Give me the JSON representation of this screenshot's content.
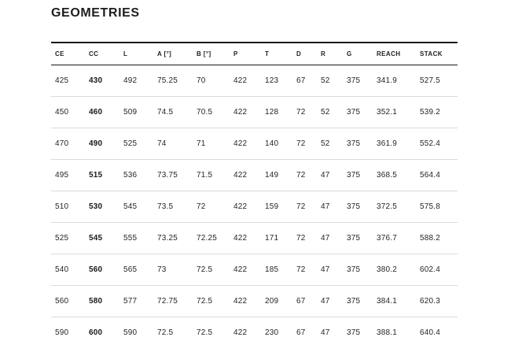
{
  "title": "GEOMETRIES",
  "colors": {
    "background": "#ffffff",
    "text": "#1e1e1e",
    "rule_dark": "#1a1a1a",
    "rule_light": "#dadada"
  },
  "table": {
    "columns": [
      "CE",
      "CC",
      "L",
      "A [°]",
      "B [°]",
      "P",
      "T",
      "D",
      "R",
      "G",
      "REACH",
      "STACK"
    ],
    "bold_column": "CC",
    "rows": [
      [
        "425",
        "430",
        "492",
        "75.25",
        "70",
        "422",
        "123",
        "67",
        "52",
        "375",
        "341.9",
        "527.5"
      ],
      [
        "450",
        "460",
        "509",
        "74.5",
        "70.5",
        "422",
        "128",
        "72",
        "52",
        "375",
        "352.1",
        "539.2"
      ],
      [
        "470",
        "490",
        "525",
        "74",
        "71",
        "422",
        "140",
        "72",
        "52",
        "375",
        "361.9",
        "552.4"
      ],
      [
        "495",
        "515",
        "536",
        "73.75",
        "71.5",
        "422",
        "149",
        "72",
        "47",
        "375",
        "368.5",
        "564.4"
      ],
      [
        "510",
        "530",
        "545",
        "73.5",
        "72",
        "422",
        "159",
        "72",
        "47",
        "375",
        "372.5",
        "575.8"
      ],
      [
        "525",
        "545",
        "555",
        "73.25",
        "72.25",
        "422",
        "171",
        "72",
        "47",
        "375",
        "376.7",
        "588.2"
      ],
      [
        "540",
        "560",
        "565",
        "73",
        "72.5",
        "422",
        "185",
        "72",
        "47",
        "375",
        "380.2",
        "602.4"
      ],
      [
        "560",
        "580",
        "577",
        "72.75",
        "72.5",
        "422",
        "209",
        "67",
        "47",
        "375",
        "384.1",
        "620.3"
      ],
      [
        "590",
        "600",
        "590",
        "72.5",
        "72.5",
        "422",
        "230",
        "67",
        "47",
        "375",
        "388.1",
        "640.4"
      ]
    ]
  }
}
